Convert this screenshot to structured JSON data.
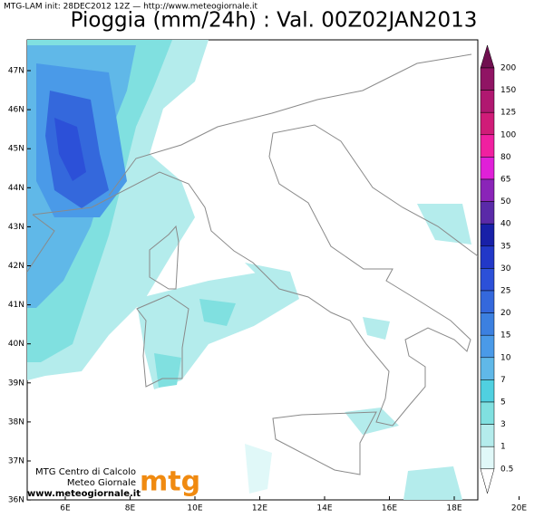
{
  "header": {
    "info": "MTG-LAM init: 28DEC2012 12Z — http://www.meteogiornale.it",
    "title": "Pioggia (mm/24h) : Val. 00Z02JAN2013"
  },
  "map": {
    "lat_labels": [
      "47N",
      "46N",
      "45N",
      "44N",
      "43N",
      "42N",
      "41N",
      "40N",
      "39N",
      "38N",
      "37N",
      "36N"
    ],
    "lon_labels": [
      "6E",
      "8E",
      "10E",
      "12E",
      "14E",
      "16E",
      "18E",
      "20E"
    ]
  },
  "colorbar": {
    "levels": [
      "200",
      "150",
      "125",
      "100",
      "80",
      "65",
      "50",
      "40",
      "35",
      "30",
      "25",
      "20",
      "15",
      "10",
      "7",
      "5",
      "3",
      "1",
      "0.5"
    ],
    "colors": [
      "#701050",
      "#901464",
      "#b01870",
      "#d01c78",
      "#f020a0",
      "#e020d8",
      "#8a24b8",
      "#5a2aa8",
      "#1820a8",
      "#2238c8",
      "#2c50d8",
      "#3468dc",
      "#3c80e0",
      "#4a9ae8",
      "#60b8e8",
      "#50d0e0",
      "#80e0e0",
      "#b4ecec",
      "#e0f8f8",
      "#ffffff"
    ]
  },
  "logo": {
    "line1": "MTG Centro di Calcolo",
    "line2": "Meteo Giornale",
    "url": "www.meteogiornale.it",
    "brand": "mtg"
  }
}
